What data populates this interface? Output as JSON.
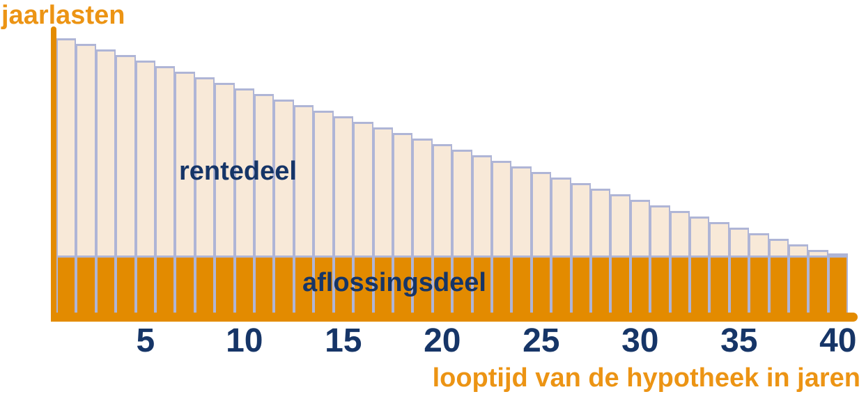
{
  "titles": {
    "y_axis": "jaarlasten",
    "x_axis": "looptijd van de hypotheek in jaren"
  },
  "labels": {
    "interest": "rentedeel",
    "repayment": "aflossingsdeel"
  },
  "x_ticks": [
    5,
    10,
    15,
    20,
    25,
    30,
    35,
    40
  ],
  "colors": {
    "axis_orange": "#E38B00",
    "text_orange": "#EC9414",
    "navy": "#163567",
    "bar_cream": "#F8E9D8",
    "bar_border": "#AFB5D6",
    "background": "#FFFFFF"
  },
  "chart_data": {
    "type": "bar",
    "stacked": true,
    "title": "",
    "xlabel": "looptijd van de hypotheek in jaren",
    "ylabel": "jaarlasten",
    "x_axis_range": [
      1,
      40
    ],
    "y_axis_unitless": true,
    "grid": false,
    "legend": "inline-text-labels",
    "x": [
      1,
      2,
      3,
      4,
      5,
      6,
      7,
      8,
      9,
      10,
      11,
      12,
      13,
      14,
      15,
      16,
      17,
      18,
      19,
      20,
      21,
      22,
      23,
      24,
      25,
      26,
      27,
      28,
      29,
      30,
      31,
      32,
      33,
      34,
      35,
      36,
      37,
      38,
      39,
      40
    ],
    "x_tick_labels": [
      5,
      10,
      15,
      20,
      25,
      30,
      35,
      40
    ],
    "series": [
      {
        "name": "aflossingsdeel",
        "role": "repayment",
        "position": "bottom",
        "values": [
          30,
          30,
          30,
          30,
          30,
          30,
          30,
          30,
          30,
          30,
          30,
          30,
          30,
          30,
          30,
          30,
          30,
          30,
          30,
          30,
          30,
          30,
          30,
          30,
          30,
          30,
          30,
          30,
          30,
          30,
          30,
          30,
          30,
          30,
          30,
          30,
          30,
          30,
          30,
          30
        ]
      },
      {
        "name": "rentedeel",
        "role": "interest",
        "position": "top",
        "values": [
          100,
          97.4,
          94.9,
          92.3,
          89.7,
          87.2,
          84.6,
          82.1,
          79.5,
          76.9,
          74.4,
          71.8,
          69.2,
          66.7,
          64.1,
          61.5,
          59,
          56.4,
          53.8,
          51.3,
          48.7,
          46.2,
          43.6,
          41,
          38.5,
          35.9,
          33.3,
          30.8,
          28.2,
          25.6,
          23.1,
          20.5,
          17.9,
          15.4,
          12.8,
          10.3,
          7.7,
          5.1,
          2.6,
          0
        ]
      }
    ]
  }
}
